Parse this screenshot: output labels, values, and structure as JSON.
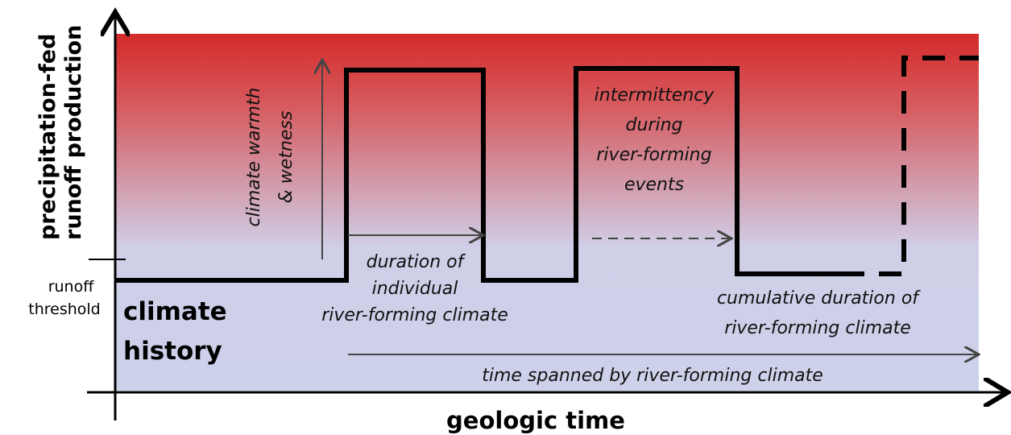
{
  "y_axis_label": [
    "precipitation-fed",
    "runoff production"
  ],
  "x_axis_label": "geologic time",
  "threshold_label": [
    "runoff",
    "threshold"
  ],
  "history_label": [
    "climate",
    "history"
  ],
  "annotations": {
    "warmth": [
      "climate warmth",
      "& wetness"
    ],
    "duration": [
      "duration of",
      "individual",
      "river-forming climate"
    ],
    "intermittency": [
      "intermittency",
      "during",
      "river-forming",
      "events"
    ],
    "cumulative": [
      "cumulative duration of",
      "river-forming climate"
    ],
    "span": "time spanned by river-forming climate"
  }
}
